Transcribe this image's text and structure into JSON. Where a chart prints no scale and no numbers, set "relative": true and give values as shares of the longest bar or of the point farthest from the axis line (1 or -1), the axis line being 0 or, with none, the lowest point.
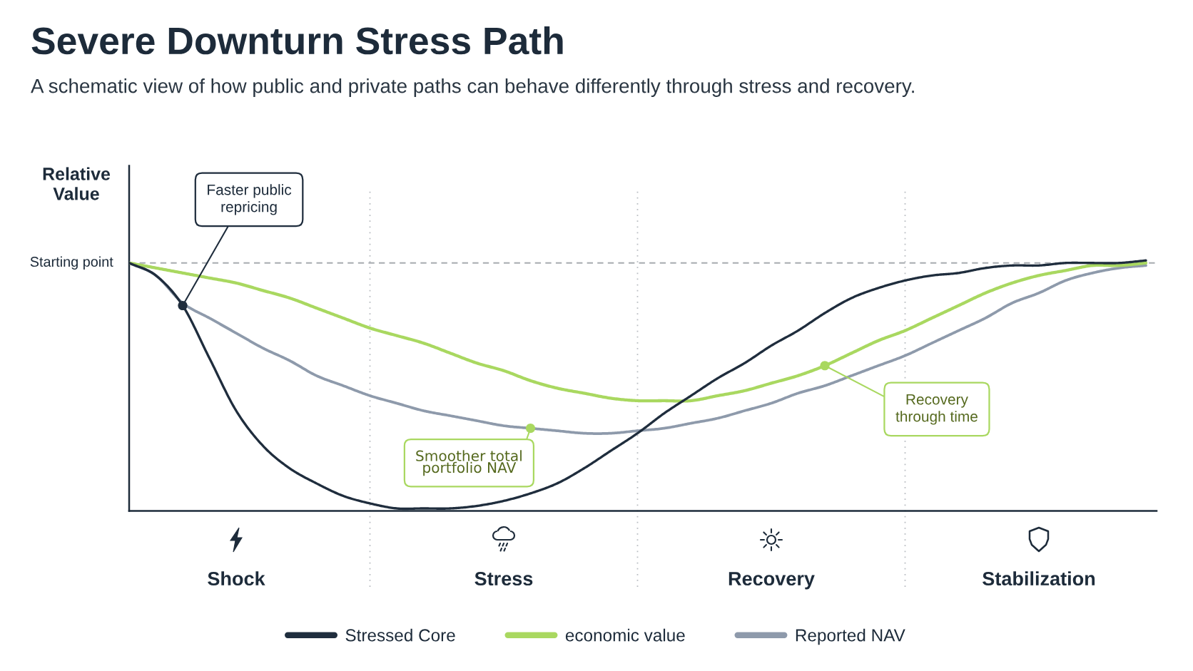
{
  "chart_data": {
    "type": "line",
    "title": "Severe Downturn Stress Path",
    "subtitle": "A schematic view of how public and private paths can behave differently through stress and recovery.",
    "ylabel": "Relative\nValue",
    "relative": true,
    "categories": [
      null,
      null,
      null,
      null,
      "Shock",
      null,
      null,
      null,
      null,
      null,
      null,
      null,
      null,
      null,
      "Stress",
      null,
      null,
      null,
      null,
      null,
      null,
      null,
      null,
      null,
      "Recovery",
      null,
      null,
      null,
      null,
      null,
      null,
      null,
      null,
      null,
      "Stabilization",
      null,
      null,
      null,
      null
    ],
    "series": [
      {
        "name": "Stressed Core",
        "color": "#1f2d3d",
        "values": [
          0.99,
          0.94,
          0.82,
          0.61,
          0.4,
          0.26,
          0.17,
          0.11,
          0.06,
          0.03,
          0.01,
          0.01,
          0.01,
          0.02,
          0.04,
          0.07,
          0.11,
          0.17,
          0.24,
          0.31,
          0.39,
          0.46,
          0.53,
          0.59,
          0.66,
          0.72,
          0.79,
          0.85,
          0.89,
          0.92,
          0.94,
          0.95,
          0.97,
          0.98,
          0.98,
          0.99,
          0.99,
          0.99,
          1.0
        ]
      },
      {
        "name": "economic value",
        "color": "#a9d860",
        "values": [
          0.99,
          0.97,
          0.95,
          0.93,
          0.91,
          0.88,
          0.85,
          0.81,
          0.77,
          0.73,
          0.7,
          0.67,
          0.63,
          0.59,
          0.56,
          0.52,
          0.49,
          0.47,
          0.45,
          0.44,
          0.44,
          0.44,
          0.46,
          0.48,
          0.51,
          0.54,
          0.58,
          0.63,
          0.68,
          0.72,
          0.77,
          0.82,
          0.87,
          0.91,
          0.94,
          0.96,
          0.98,
          0.98,
          0.99
        ]
      },
      {
        "name": "Reported NAV",
        "color": "#8e9aab",
        "values": [
          0.99,
          0.94,
          0.83,
          0.77,
          0.71,
          0.65,
          0.6,
          0.54,
          0.5,
          0.46,
          0.43,
          0.4,
          0.38,
          0.36,
          0.34,
          0.33,
          0.32,
          0.31,
          0.31,
          0.32,
          0.33,
          0.35,
          0.37,
          0.4,
          0.43,
          0.47,
          0.5,
          0.54,
          0.58,
          0.62,
          0.67,
          0.72,
          0.77,
          0.83,
          0.87,
          0.92,
          0.95,
          0.97,
          0.98
        ]
      },
      {
        "type": "scatter",
        "color": "#1f2d3d",
        "values": [
          null,
          null,
          0.82,
          null,
          null,
          null,
          null,
          null,
          null,
          null,
          null,
          null,
          null,
          null,
          null,
          null,
          null,
          null,
          null,
          null,
          null,
          null,
          null,
          null,
          null,
          null,
          null,
          null,
          null,
          null,
          null,
          null,
          null,
          null,
          null,
          null,
          null,
          null,
          null
        ]
      },
      {
        "type": "scatter",
        "color": "#a9d860",
        "values": [
          null,
          null,
          null,
          null,
          null,
          null,
          null,
          null,
          null,
          null,
          null,
          null,
          null,
          null,
          null,
          0.33,
          null,
          null,
          null,
          null,
          null,
          null,
          null,
          null,
          null,
          null,
          null,
          null,
          null,
          null,
          null,
          null,
          null,
          null,
          null,
          null,
          null,
          null,
          null
        ]
      },
      {
        "type": "scatter",
        "color": "#a9d860",
        "values": [
          null,
          null,
          null,
          null,
          null,
          null,
          null,
          null,
          null,
          null,
          null,
          null,
          null,
          null,
          null,
          null,
          null,
          null,
          null,
          null,
          null,
          null,
          null,
          null,
          null,
          null,
          0.58,
          null,
          null,
          null,
          null,
          null,
          null,
          null,
          null,
          null,
          null,
          null,
          null
        ]
      }
    ],
    "ref_lines": [
      {
        "axis": "y",
        "value": 0.99,
        "label": "Starting point",
        "line_style": "dashed",
        "color": "#a7abb0"
      }
    ],
    "grid": "x",
    "annotations": [
      "Faster public\nrepricing",
      "Smoother total\nportfolio NAV",
      "Recovery\nthrough time"
    ],
    "legend": "bottom"
  }
}
